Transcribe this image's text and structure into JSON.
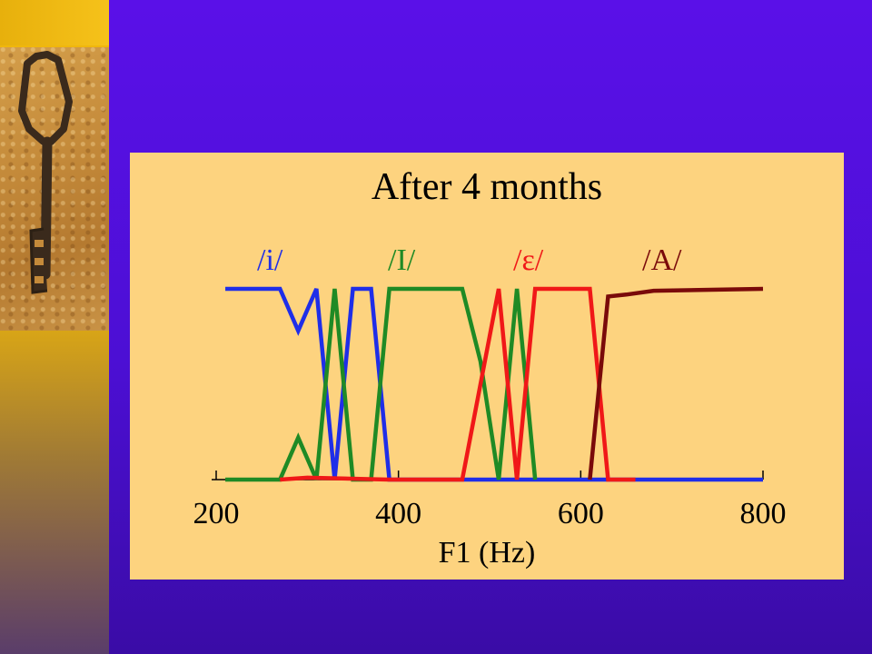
{
  "slide": {
    "accent_color": "#f2b80c",
    "background_color": "#4c0fd4",
    "photo_icon": "antique-key-icon"
  },
  "chart_data": {
    "type": "line",
    "title": "After 4 months",
    "xlabel": "F1 (Hz)",
    "ylabel": "",
    "xlim": [
      200,
      800
    ],
    "ylim": [
      0,
      1
    ],
    "x_ticks": [
      200,
      400,
      600,
      800
    ],
    "grid": false,
    "series": [
      {
        "name": "/i/",
        "color": "#1f2ee8",
        "points": [
          [
            210,
            1
          ],
          [
            270,
            1
          ],
          [
            290,
            0.78
          ],
          [
            310,
            1
          ],
          [
            330,
            0
          ],
          [
            350,
            1
          ],
          [
            370,
            1
          ],
          [
            390,
            0
          ],
          [
            800,
            0
          ]
        ]
      },
      {
        "name": "/I/",
        "color": "#1f8a25",
        "points": [
          [
            210,
            0
          ],
          [
            270,
            0
          ],
          [
            290,
            0.22
          ],
          [
            310,
            0
          ],
          [
            330,
            1
          ],
          [
            350,
            0
          ],
          [
            370,
            0
          ],
          [
            390,
            1
          ],
          [
            450,
            1
          ],
          [
            470,
            1
          ],
          [
            490,
            0.62
          ],
          [
            510,
            0
          ],
          [
            530,
            1
          ],
          [
            550,
            0
          ]
        ]
      },
      {
        "name": "/ε/",
        "color": "#f01818",
        "points": [
          [
            270,
            0
          ],
          [
            300,
            0.01
          ],
          [
            390,
            0
          ],
          [
            470,
            0
          ],
          [
            510,
            1
          ],
          [
            530,
            0
          ],
          [
            550,
            1
          ],
          [
            610,
            1
          ],
          [
            630,
            0
          ],
          [
            660,
            0
          ]
        ]
      },
      {
        "name": "/A/",
        "color": "#7a0a0a",
        "points": [
          [
            610,
            0
          ],
          [
            630,
            0.96
          ],
          [
            650,
            0.97
          ],
          [
            680,
            0.99
          ],
          [
            800,
            1
          ]
        ]
      }
    ]
  }
}
